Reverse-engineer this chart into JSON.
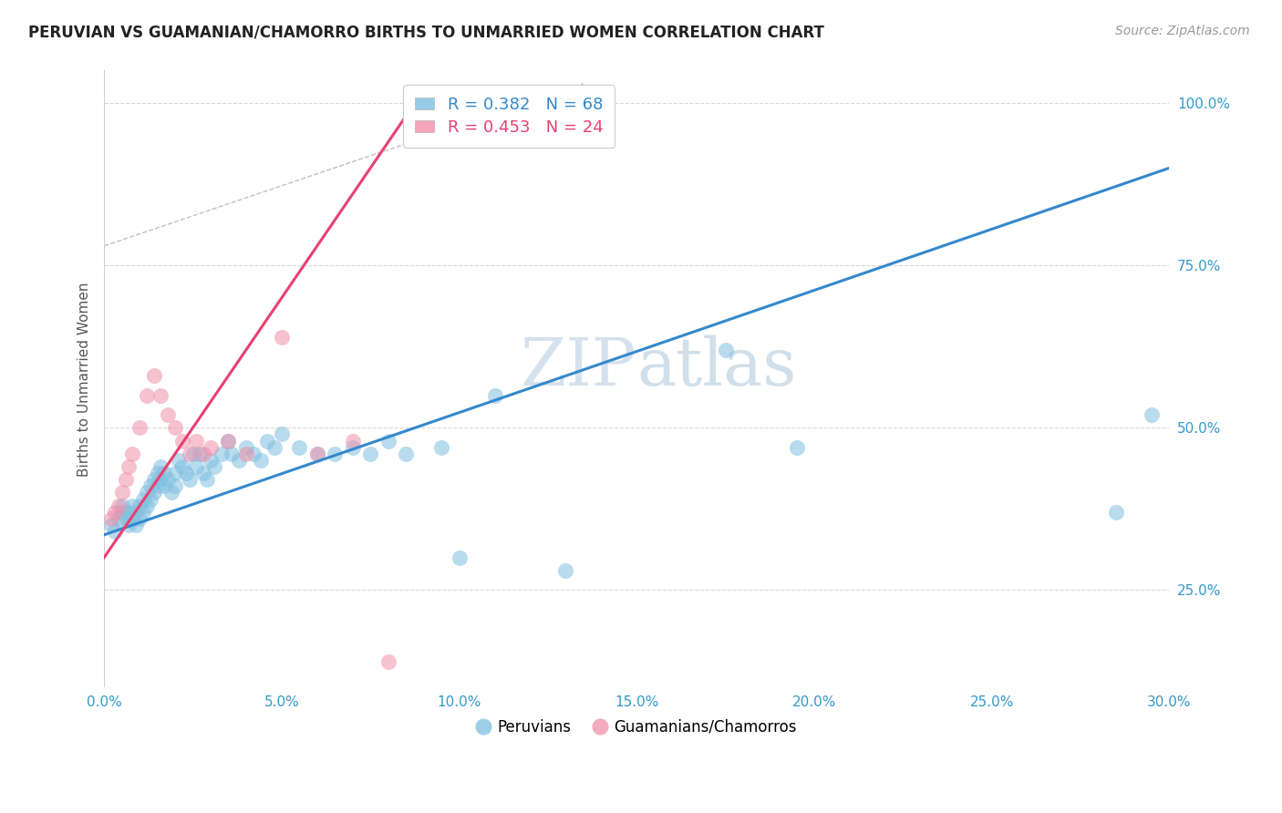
{
  "title": "PERUVIAN VS GUAMANIAN/CHAMORRO BIRTHS TO UNMARRIED WOMEN CORRELATION CHART",
  "source": "Source: ZipAtlas.com",
  "ylabel": "Births to Unmarried Women",
  "xlabel_ticks": [
    "0.0%",
    "5.0%",
    "10.0%",
    "15.0%",
    "20.0%",
    "25.0%",
    "30.0%"
  ],
  "xlabel_vals": [
    0.0,
    0.05,
    0.1,
    0.15,
    0.2,
    0.25,
    0.3
  ],
  "ylabel_ticks": [
    "25.0%",
    "50.0%",
    "75.0%",
    "100.0%"
  ],
  "ylabel_vals": [
    0.25,
    0.5,
    0.75,
    1.0
  ],
  "xlim": [
    0.0,
    0.3
  ],
  "ylim": [
    0.1,
    1.05
  ],
  "blue_R": 0.382,
  "blue_N": 68,
  "pink_R": 0.453,
  "pink_N": 24,
  "blue_color": "#7fbfdf",
  "pink_color": "#f090aa",
  "blue_line_color": "#3388cc",
  "pink_line_color": "#e84070",
  "legend_label_peruvians": "Peruvians",
  "legend_label_guamanian": "Guamanians/Chamorros",
  "watermark": "ZIPatlas",
  "blue_scatter_x": [
    0.002,
    0.003,
    0.004,
    0.005,
    0.005,
    0.006,
    0.007,
    0.007,
    0.008,
    0.008,
    0.009,
    0.009,
    0.01,
    0.01,
    0.011,
    0.011,
    0.012,
    0.012,
    0.013,
    0.013,
    0.014,
    0.014,
    0.015,
    0.015,
    0.016,
    0.016,
    0.017,
    0.017,
    0.018,
    0.019,
    0.02,
    0.02,
    0.021,
    0.022,
    0.023,
    0.024,
    0.025,
    0.026,
    0.027,
    0.028,
    0.029,
    0.03,
    0.031,
    0.033,
    0.035,
    0.036,
    0.038,
    0.04,
    0.042,
    0.044,
    0.046,
    0.048,
    0.05,
    0.055,
    0.06,
    0.065,
    0.07,
    0.075,
    0.08,
    0.085,
    0.095,
    0.1,
    0.11,
    0.13,
    0.175,
    0.195,
    0.285,
    0.295
  ],
  "blue_scatter_y": [
    0.35,
    0.34,
    0.36,
    0.38,
    0.37,
    0.36,
    0.37,
    0.35,
    0.38,
    0.36,
    0.37,
    0.35,
    0.38,
    0.36,
    0.39,
    0.37,
    0.4,
    0.38,
    0.41,
    0.39,
    0.42,
    0.4,
    0.43,
    0.41,
    0.44,
    0.42,
    0.43,
    0.41,
    0.42,
    0.4,
    0.43,
    0.41,
    0.45,
    0.44,
    0.43,
    0.42,
    0.46,
    0.44,
    0.46,
    0.43,
    0.42,
    0.45,
    0.44,
    0.46,
    0.48,
    0.46,
    0.45,
    0.47,
    0.46,
    0.45,
    0.48,
    0.47,
    0.49,
    0.47,
    0.46,
    0.46,
    0.47,
    0.46,
    0.48,
    0.46,
    0.47,
    0.3,
    0.55,
    0.28,
    0.62,
    0.47,
    0.37,
    0.52
  ],
  "pink_scatter_x": [
    0.002,
    0.003,
    0.004,
    0.005,
    0.006,
    0.007,
    0.008,
    0.01,
    0.012,
    0.014,
    0.016,
    0.018,
    0.02,
    0.022,
    0.024,
    0.026,
    0.028,
    0.03,
    0.035,
    0.04,
    0.05,
    0.06,
    0.07,
    0.08
  ],
  "pink_scatter_y": [
    0.36,
    0.37,
    0.38,
    0.4,
    0.42,
    0.44,
    0.46,
    0.5,
    0.55,
    0.58,
    0.55,
    0.52,
    0.5,
    0.48,
    0.46,
    0.48,
    0.46,
    0.47,
    0.48,
    0.46,
    0.64,
    0.46,
    0.48,
    0.14
  ],
  "blue_line_x": [
    0.0,
    0.3
  ],
  "blue_line_y": [
    0.335,
    0.9
  ],
  "pink_line_x": [
    0.0,
    0.085
  ],
  "pink_line_y": [
    0.3,
    0.98
  ],
  "diag_line_x": [
    0.0,
    0.135
  ],
  "diag_line_y": [
    0.78,
    1.03
  ]
}
